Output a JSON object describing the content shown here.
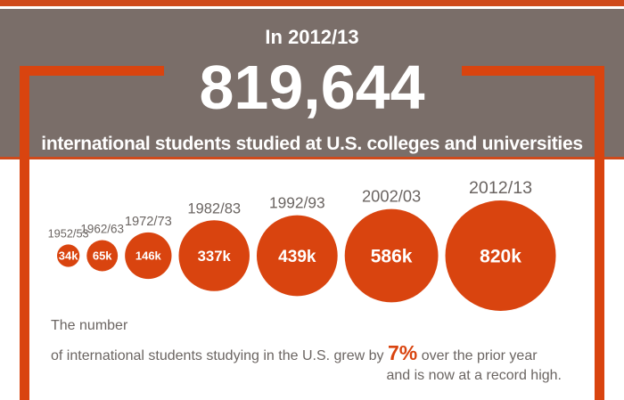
{
  "header": {
    "kicker": "In 2012/13",
    "big_number": "819,644",
    "subtitle": "international students studied at U.S. colleges and universities"
  },
  "chart_data": {
    "type": "bubble",
    "unit": "international students (thousands)",
    "categories": [
      "1952/53",
      "1962/63",
      "1972/73",
      "1982/83",
      "1992/93",
      "2002/03",
      "2012/13"
    ],
    "values": [
      34,
      65,
      146,
      337,
      439,
      586,
      820
    ],
    "value_labels": [
      "34k",
      "65k",
      "146k",
      "337k",
      "439k",
      "586k",
      "820k"
    ]
  },
  "caption": {
    "line1": "The number",
    "line2_before": "of international students studying in the U.S. grew by",
    "growth": "7%",
    "line2_after": "over the prior year",
    "line3": "and is now at a record high."
  },
  "colors": {
    "accent": "#d9440f",
    "banner": "#7a6e69",
    "text_gray": "#6b6562"
  }
}
